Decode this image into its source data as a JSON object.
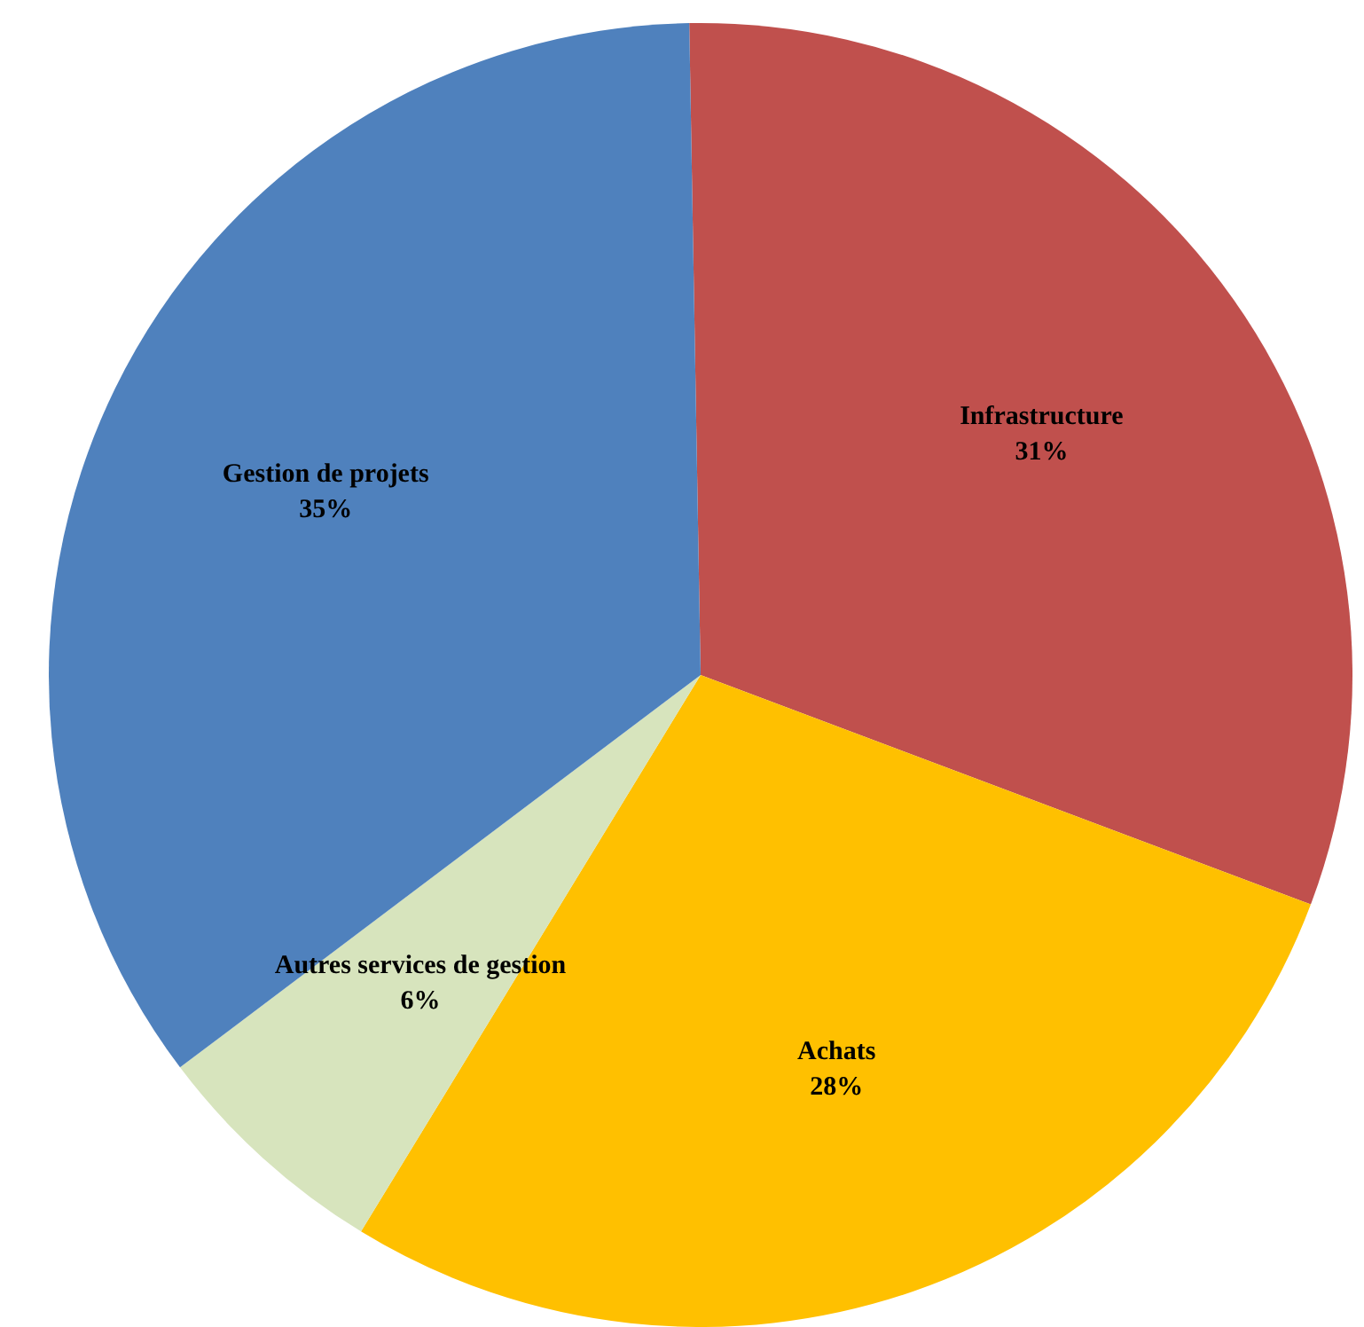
{
  "chart_data": {
    "type": "pie",
    "categories": [
      "Infrastructure",
      "Achats",
      "Autres services de gestion",
      "Gestion de projets"
    ],
    "values": [
      31,
      28,
      6,
      35
    ],
    "colors": [
      "#c0504d",
      "#ffc000",
      "#d7e4bd",
      "#4f81bd"
    ],
    "value_labels": [
      "31%",
      "28%",
      "6%",
      "35%"
    ],
    "legend": false
  }
}
